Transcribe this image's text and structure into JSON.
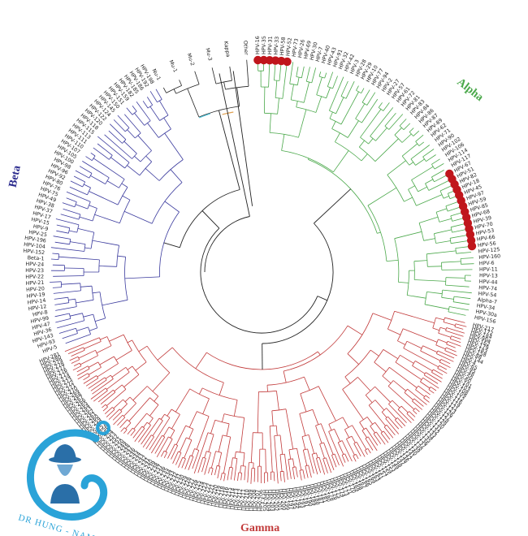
{
  "genus_labels": {
    "alpha": "Alpha",
    "beta": "Beta",
    "gamma": "Gamma"
  },
  "colors": {
    "alpha": "#4aa84a",
    "beta": "#3b3b9e",
    "gamma": "#c23b3b",
    "core": "#222222",
    "minor_cyan": "#4fc3d9",
    "minor_orange": "#e0a050",
    "marker": "#c0161c",
    "logo": "#2aa3d8"
  },
  "alpha_highlighted": [
    "HPV-16",
    "HPV-35",
    "HPV-31",
    "HPV-33",
    "HPV-58",
    "HPV-52",
    "HPV-67",
    "HPV-51",
    "HPV-82",
    "HPV-18",
    "HPV-45",
    "HPV-97",
    "HPV-59",
    "HPV-85",
    "HPV-68",
    "HPV-39",
    "HPV-70",
    "HPV-53",
    "HPV-66",
    "HPV-56"
  ],
  "alpha_other": [
    "HPV-73",
    "HPV-26",
    "HPV-69",
    "HPV-30",
    "HPV-7",
    "HPV-40",
    "HPV-43",
    "HPV-91",
    "HPV-32",
    "HPV-42",
    "HPV-3",
    "HPV-28",
    "HPV-29",
    "HPV-10",
    "HPV-77",
    "HPV-94",
    "HPV-2",
    "HPV-27",
    "HPV-57",
    "HPV-61",
    "HPV-72",
    "HPV-81",
    "HPV-83",
    "HPV-84",
    "HPV-86",
    "HPV-87",
    "HPV-89",
    "HPV-62",
    "HPV-71",
    "HPV-90",
    "HPV-102",
    "HPV-106",
    "HPV-114",
    "HPV-117",
    "HPV-125",
    "HPV-160",
    "HPV-6",
    "HPV-11",
    "HPV-13",
    "HPV-44",
    "HPV-74",
    "HPV-54",
    "Alpha-7",
    "HPV-34",
    "HPV-30a",
    "HPV-156"
  ],
  "gamma_leaves": [
    "HPV-217",
    "HPV-172",
    "HPV-184",
    "HPV-90a",
    "HPV-162",
    "HPV-179",
    "HPV-183",
    "HPV-158",
    "HPV-88",
    "HPV-144",
    "HPV-4",
    "HPV-65",
    "HPV-95",
    "HPV-48",
    "HPV-50",
    "HPV-60",
    "HPV-101",
    "HPV-103",
    "HPV-108",
    "HPV-109",
    "HPV-112",
    "HPV-116",
    "HPV-119",
    "HPV-121",
    "HPV-123",
    "HPV-126",
    "HPV-127",
    "HPV-128",
    "HPV-129",
    "HPV-130",
    "HPV-131",
    "HPV-132",
    "HPV-133",
    "HPV-134",
    "HPV-135",
    "HPV-136",
    "HPV-137",
    "HPV-138",
    "HPV-139",
    "HPV-140",
    "HPV-141",
    "HPV-142",
    "HPV-146",
    "HPV-147",
    "HPV-148",
    "HPV-149",
    "HPV-153",
    "HPV-154",
    "HPV-155",
    "HPV-157",
    "HPV-161",
    "HPV-163",
    "HPV-164",
    "HPV-165",
    "HPV-166",
    "HPV-167",
    "HPV-168",
    "HPV-169",
    "HPV-170",
    "HPV-171",
    "HPV-173",
    "HPV-174",
    "HPV-175",
    "HPV-176",
    "HPV-178",
    "HPV-180",
    "HPV-181",
    "HPV-187",
    "HPV-188",
    "HPV-189",
    "HPV-190",
    "HPV-191",
    "HPV-193",
    "HPV-194",
    "HPV-195",
    "HPV-197",
    "HPV-199",
    "HPV-200",
    "HPV-201",
    "HPV-202",
    "HPV-203",
    "HPV-204",
    "HPV-205",
    "HPV-206",
    "HPV-207",
    "HPV-208",
    "HPV-209",
    "HPV-210",
    "HPV-211",
    "HPV-212",
    "HPV-213",
    "HPV-214",
    "HPV-215",
    "HPV-216",
    "HPV-218",
    "HPV-219",
    "HPV-220",
    "HPV-221",
    "HPV-222",
    "HPV-223",
    "HPV-224",
    "HPV-225",
    "HPV-226",
    "HPV-227",
    "HPV-228",
    "HPV-229",
    "HPV-230",
    "HPV-231",
    "HPV-232",
    "HPV-233",
    "HPV-234",
    "HPV-235",
    "HPV-236",
    "HPV-237",
    "HPV-238",
    "HPV-239",
    "HPV-240",
    "HPV-241",
    "HPV-242",
    "HPV-243",
    "HPV-244",
    "HPV-245",
    "HPV-246",
    "HPV-247",
    "HPV-248",
    "HPV-249",
    "HPV-250",
    "HPV-251",
    "HPV-252",
    "HPV-253",
    "HPV-254",
    "HPV-255",
    "HPV-256",
    "HPV-257",
    "HPV-258",
    "HPV-259",
    "HPV-260",
    "HPV-261",
    "HPV-262",
    "HPV-263",
    "HPV-264",
    "HPV-265",
    "HPV-266",
    "HPV-267",
    "HPV-268",
    "HPV-269",
    "HPV-270",
    "HPV-271",
    "HPV-272",
    "HPV-273",
    "HPV-274",
    "HPV-275",
    "HPV-276",
    "HPV-277",
    "HPV-278",
    "HPV-279",
    "HPV-280",
    "HPV-281"
  ],
  "beta_leaves": [
    "HPV-5",
    "HPV-93",
    "HPV-143",
    "HPV-36",
    "HPV-47",
    "HPV-99",
    "HPV-8",
    "HPV-12",
    "HPV-14",
    "HPV-19",
    "HPV-20",
    "HPV-21",
    "HPV-22",
    "HPV-23",
    "HPV-24",
    "Beta-1",
    "HPV-152",
    "HPV-104",
    "HPV-196",
    "HPV-25",
    "HPV-9",
    "HPV-15",
    "HPV-17",
    "HPV-37",
    "HPV-38",
    "HPV-49",
    "HPV-75",
    "HPV-76",
    "HPV-80",
    "HPV-92",
    "HPV-96",
    "HPV-98",
    "HPV-100",
    "HPV-105",
    "HPV-107",
    "HPV-110",
    "HPV-111",
    "HPV-113",
    "HPV-115",
    "HPV-118",
    "HPV-120",
    "HPV-122",
    "HPV-124",
    "HPV-145",
    "HPV-150",
    "HPV-151",
    "HPV-159",
    "HPV-182",
    "HPV-185",
    "HPV-186",
    "HPV-192",
    "HPV-198"
  ],
  "minor_leaves": [
    "Nu-1",
    "Mu-1",
    "Mu-2",
    "Mu-3",
    "Kappa",
    "Other"
  ],
  "logo": {
    "text": "DR HUNG - NAM KHOA"
  }
}
